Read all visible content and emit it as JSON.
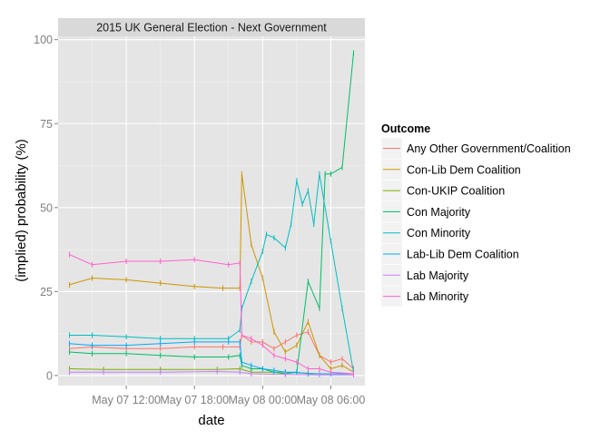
{
  "chart_data": {
    "type": "line",
    "title": "2015 UK General Election - Next Government",
    "xlabel": "date",
    "ylabel": "(implied) probability (%)",
    "x_unit": "datetime (2015-05-07 to 2015-05-08, hours)",
    "xlim": [
      "2015-05-07 06:00",
      "2015-05-08 09:00"
    ],
    "ylim": [
      -3,
      101
    ],
    "x_ticks": [
      {
        "value": "2015-05-07 12:00",
        "label": "May 07 12:00"
      },
      {
        "value": "2015-05-07 18:00",
        "label": "May 07 18:00"
      },
      {
        "value": "2015-05-08 00:00",
        "label": "May 08 00:00"
      },
      {
        "value": "2015-05-08 06:00",
        "label": "May 08 06:00"
      }
    ],
    "y_ticks": [
      0,
      25,
      50,
      75,
      100
    ],
    "grid": true,
    "legend": {
      "title": "Outcome",
      "position": "right"
    },
    "series": [
      {
        "name": "Any Other Government/Coalition",
        "color": "#F8766D",
        "points": [
          [
            "2015-05-07 07:00",
            8
          ],
          [
            "2015-05-07 09:00",
            8.5
          ],
          [
            "2015-05-07 12:00",
            8
          ],
          [
            "2015-05-07 15:00",
            8
          ],
          [
            "2015-05-07 18:00",
            8.5
          ],
          [
            "2015-05-07 20:30",
            8.5
          ],
          [
            "2015-05-07 22:00",
            8.5
          ],
          [
            "2015-05-07 22:10",
            12
          ],
          [
            "2015-05-07 23:00",
            10
          ],
          [
            "2015-05-08 00:00",
            10
          ],
          [
            "2015-05-08 01:00",
            8
          ],
          [
            "2015-05-08 02:00",
            10
          ],
          [
            "2015-05-08 03:00",
            12
          ],
          [
            "2015-05-08 04:00",
            13
          ],
          [
            "2015-05-08 05:00",
            6
          ],
          [
            "2015-05-08 06:00",
            4
          ],
          [
            "2015-05-08 07:00",
            5
          ],
          [
            "2015-05-08 08:00",
            2
          ]
        ]
      },
      {
        "name": "Con-Lib Dem Coalition",
        "color": "#CD9600",
        "points": [
          [
            "2015-05-07 07:00",
            27
          ],
          [
            "2015-05-07 09:00",
            29
          ],
          [
            "2015-05-07 12:00",
            28.5
          ],
          [
            "2015-05-07 15:00",
            27.5
          ],
          [
            "2015-05-07 18:00",
            26.5
          ],
          [
            "2015-05-07 20:30",
            26
          ],
          [
            "2015-05-07 22:00",
            26
          ],
          [
            "2015-05-07 22:10",
            60
          ],
          [
            "2015-05-07 23:00",
            39
          ],
          [
            "2015-05-08 00:00",
            29
          ],
          [
            "2015-05-08 01:00",
            13
          ],
          [
            "2015-05-08 02:00",
            7
          ],
          [
            "2015-05-08 03:00",
            9
          ],
          [
            "2015-05-08 04:00",
            16
          ],
          [
            "2015-05-08 05:00",
            6
          ],
          [
            "2015-05-08 06:00",
            2
          ],
          [
            "2015-05-08 07:00",
            3
          ],
          [
            "2015-05-08 08:00",
            1
          ]
        ]
      },
      {
        "name": "Con-UKIP Coalition",
        "color": "#7CAE00",
        "points": [
          [
            "2015-05-07 07:00",
            2
          ],
          [
            "2015-05-07 10:00",
            1.8
          ],
          [
            "2015-05-07 15:00",
            1.8
          ],
          [
            "2015-05-07 20:00",
            1.8
          ],
          [
            "2015-05-07 22:00",
            2
          ],
          [
            "2015-05-07 23:00",
            1
          ],
          [
            "2015-05-08 02:00",
            1
          ],
          [
            "2015-05-08 05:00",
            0.5
          ],
          [
            "2015-05-08 08:00",
            0.5
          ]
        ]
      },
      {
        "name": "Con Majority",
        "color": "#00BE67",
        "points": [
          [
            "2015-05-07 07:00",
            7
          ],
          [
            "2015-05-07 09:00",
            6.5
          ],
          [
            "2015-05-07 12:00",
            6.5
          ],
          [
            "2015-05-07 15:00",
            6
          ],
          [
            "2015-05-07 18:00",
            5.5
          ],
          [
            "2015-05-07 21:00",
            5.5
          ],
          [
            "2015-05-07 22:00",
            6
          ],
          [
            "2015-05-07 22:10",
            3
          ],
          [
            "2015-05-07 23:00",
            2
          ],
          [
            "2015-05-08 00:00",
            2
          ],
          [
            "2015-05-08 01:00",
            1
          ],
          [
            "2015-05-08 02:00",
            0.5
          ],
          [
            "2015-05-08 03:00",
            1
          ],
          [
            "2015-05-08 04:00",
            28
          ],
          [
            "2015-05-08 05:00",
            20
          ],
          [
            "2015-05-08 05:30",
            60
          ],
          [
            "2015-05-08 06:00",
            60
          ],
          [
            "2015-05-08 07:00",
            62
          ],
          [
            "2015-05-08 08:00",
            96
          ]
        ]
      },
      {
        "name": "Con Minority",
        "color": "#00BFC4",
        "points": [
          [
            "2015-05-07 07:00",
            12
          ],
          [
            "2015-05-07 09:00",
            12
          ],
          [
            "2015-05-07 12:00",
            11.5
          ],
          [
            "2015-05-07 15:00",
            11
          ],
          [
            "2015-05-07 18:00",
            11
          ],
          [
            "2015-05-07 21:00",
            11
          ],
          [
            "2015-05-07 22:00",
            13.5
          ],
          [
            "2015-05-07 22:10",
            20
          ],
          [
            "2015-05-07 23:00",
            28
          ],
          [
            "2015-05-08 00:00",
            37
          ],
          [
            "2015-05-08 00:20",
            42
          ],
          [
            "2015-05-08 01:00",
            41
          ],
          [
            "2015-05-08 02:00",
            38
          ],
          [
            "2015-05-08 02:30",
            45
          ],
          [
            "2015-05-08 03:00",
            58
          ],
          [
            "2015-05-08 03:30",
            51
          ],
          [
            "2015-05-08 04:00",
            55
          ],
          [
            "2015-05-08 04:30",
            45
          ],
          [
            "2015-05-08 05:00",
            60
          ],
          [
            "2015-05-08 06:00",
            40
          ],
          [
            "2015-05-08 07:00",
            20
          ],
          [
            "2015-05-08 08:00",
            1
          ]
        ]
      },
      {
        "name": "Lab-Lib Dem Coalition",
        "color": "#00A9FF",
        "points": [
          [
            "2015-05-07 07:00",
            9.5
          ],
          [
            "2015-05-07 09:00",
            9
          ],
          [
            "2015-05-07 12:00",
            9
          ],
          [
            "2015-05-07 15:00",
            9.5
          ],
          [
            "2015-05-07 18:00",
            10
          ],
          [
            "2015-05-07 21:00",
            10
          ],
          [
            "2015-05-07 22:00",
            10
          ],
          [
            "2015-05-07 22:10",
            4
          ],
          [
            "2015-05-07 23:00",
            3
          ],
          [
            "2015-05-08 00:00",
            2
          ],
          [
            "2015-05-08 01:00",
            1.5
          ],
          [
            "2015-05-08 02:00",
            1
          ],
          [
            "2015-05-08 03:00",
            1
          ],
          [
            "2015-05-08 04:00",
            0.5
          ],
          [
            "2015-05-08 06:00",
            0.5
          ],
          [
            "2015-05-08 08:00",
            0.5
          ]
        ]
      },
      {
        "name": "Lab Majority",
        "color": "#C77CFF",
        "points": [
          [
            "2015-05-07 07:00",
            1
          ],
          [
            "2015-05-07 10:00",
            1
          ],
          [
            "2015-05-07 15:00",
            1
          ],
          [
            "2015-05-07 20:00",
            1.2
          ],
          [
            "2015-05-07 22:00",
            1
          ],
          [
            "2015-05-07 23:00",
            0.5
          ],
          [
            "2015-05-08 02:00",
            0.3
          ],
          [
            "2015-05-08 05:00",
            0.2
          ],
          [
            "2015-05-08 08:00",
            0.2
          ]
        ]
      },
      {
        "name": "Lab Minority",
        "color": "#FF61CC",
        "points": [
          [
            "2015-05-07 07:00",
            36
          ],
          [
            "2015-05-07 09:00",
            33
          ],
          [
            "2015-05-07 12:00",
            34
          ],
          [
            "2015-05-07 15:00",
            34
          ],
          [
            "2015-05-07 18:00",
            34.5
          ],
          [
            "2015-05-07 21:00",
            33
          ],
          [
            "2015-05-07 22:00",
            33.5
          ],
          [
            "2015-05-07 22:10",
            12
          ],
          [
            "2015-05-07 23:00",
            11
          ],
          [
            "2015-05-08 00:00",
            9
          ],
          [
            "2015-05-08 01:00",
            6
          ],
          [
            "2015-05-08 02:00",
            5
          ],
          [
            "2015-05-08 03:00",
            4
          ],
          [
            "2015-05-08 04:00",
            2
          ],
          [
            "2015-05-08 05:00",
            2
          ],
          [
            "2015-05-08 06:00",
            1
          ],
          [
            "2015-05-08 08:00",
            0.5
          ]
        ]
      }
    ]
  }
}
